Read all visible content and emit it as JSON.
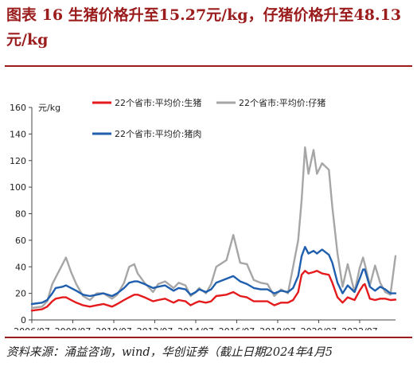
{
  "header": {
    "title": "图表 16 生猪价格升至15.27元/kg，仔猪价格升至48.13元/kg"
  },
  "footer": {
    "source": "资料来源：涌益咨询，wind，华创证券（截止日期2024年4月5"
  },
  "colors": {
    "accent": "#9b1c1c",
    "live_hog": "#e41a1c",
    "piglet": "#a6a6a6",
    "pork": "#1f5fae"
  },
  "chart_data": {
    "type": "line",
    "unit_label": "元/kg",
    "ylim": [
      0,
      160
    ],
    "y_ticks": [
      "0",
      "20",
      "40",
      "60",
      "80",
      "100",
      "120",
      "140",
      "160"
    ],
    "x_range": [
      "2006-07",
      "2024-04"
    ],
    "x_ticks": [
      "2006/07",
      "2008/07",
      "2010/07",
      "2012/07",
      "2014/07",
      "2016/07",
      "2018/07",
      "2020/07",
      "2022/07"
    ],
    "grid": false,
    "legend_position": "top",
    "x": [
      "2006-07",
      "2007-01",
      "2007-04",
      "2007-07",
      "2007-09",
      "2008-01",
      "2008-03",
      "2008-06",
      "2008-09",
      "2009-01",
      "2009-05",
      "2009-09",
      "2010-01",
      "2010-06",
      "2010-09",
      "2011-01",
      "2011-04",
      "2011-07",
      "2011-09",
      "2012-01",
      "2012-06",
      "2012-09",
      "2013-01",
      "2013-06",
      "2013-09",
      "2014-01",
      "2014-04",
      "2014-07",
      "2014-09",
      "2015-01",
      "2015-04",
      "2015-07",
      "2016-01",
      "2016-05",
      "2016-09",
      "2017-01",
      "2017-05",
      "2017-09",
      "2018-01",
      "2018-05",
      "2018-09",
      "2019-01",
      "2019-04",
      "2019-07",
      "2019-09",
      "2019-11",
      "2020-01",
      "2020-04",
      "2020-06",
      "2020-09",
      "2021-01",
      "2021-03",
      "2021-06",
      "2021-09",
      "2021-12",
      "2022-04",
      "2022-07",
      "2022-09",
      "2022-10",
      "2023-01",
      "2023-04",
      "2023-07",
      "2023-10",
      "2024-01",
      "2024-04"
    ],
    "series": [
      {
        "name": "22个省市:平均价:生猪",
        "color": "#e41a1c",
        "values": [
          7,
          8,
          10,
          14,
          16,
          17,
          17,
          15,
          13,
          11,
          10,
          11,
          12,
          10,
          12,
          15,
          17,
          19,
          19,
          17,
          14,
          15,
          16,
          13,
          15,
          14,
          11,
          13,
          14,
          13,
          14,
          18,
          19,
          21,
          18,
          17,
          14,
          14,
          14,
          11,
          13,
          13,
          15,
          21,
          34,
          37,
          35,
          36,
          37,
          35,
          34,
          28,
          17,
          13,
          17,
          15,
          22,
          26,
          27,
          16,
          15,
          16,
          16,
          15,
          15.27
        ]
      },
      {
        "name": "22个省市:平均价:仔猪",
        "color": "#a6a6a6",
        "values": [
          9,
          10,
          14,
          27,
          32,
          42,
          47,
          36,
          27,
          18,
          15,
          20,
          20,
          16,
          19,
          28,
          40,
          42,
          35,
          28,
          21,
          27,
          29,
          24,
          28,
          26,
          18,
          21,
          24,
          20,
          27,
          40,
          45,
          64,
          43,
          42,
          30,
          28,
          27,
          18,
          23,
          20,
          40,
          60,
          90,
          130,
          110,
          128,
          110,
          118,
          113,
          85,
          50,
          25,
          42,
          21,
          39,
          47,
          42,
          26,
          41,
          28,
          21,
          19,
          48.13
        ]
      },
      {
        "name": "22个省市:平均价:猪肉",
        "color": "#1f5fae",
        "values": [
          12,
          13,
          15,
          20,
          24,
          25,
          26,
          24,
          22,
          19,
          18,
          19,
          20,
          18,
          20,
          24,
          28,
          29,
          29,
          27,
          24,
          25,
          26,
          22,
          24,
          23,
          19,
          21,
          23,
          21,
          23,
          28,
          31,
          33,
          29,
          27,
          24,
          23,
          23,
          20,
          22,
          21,
          24,
          33,
          48,
          55,
          50,
          52,
          50,
          53,
          49,
          43,
          28,
          20,
          26,
          21,
          31,
          38,
          38,
          25,
          22,
          25,
          23,
          20,
          20
        ]
      }
    ]
  }
}
